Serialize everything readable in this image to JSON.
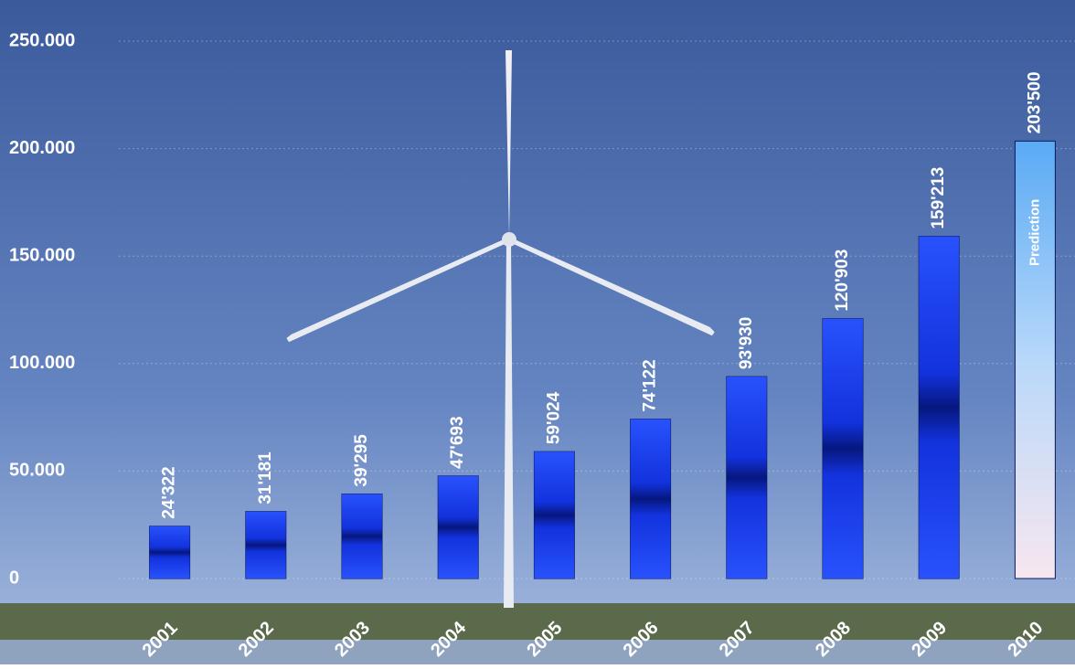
{
  "chart_data": {
    "type": "bar",
    "categories": [
      "2001",
      "2002",
      "2003",
      "2004",
      "2005",
      "2006",
      "2007",
      "2008",
      "2009",
      "2010"
    ],
    "values": [
      24322,
      31181,
      39295,
      47693,
      59024,
      74122,
      93930,
      120903,
      159213,
      203500
    ],
    "value_labels": [
      "24'322",
      "31'181",
      "39'295",
      "47'693",
      "59'024",
      "74'122",
      "93'930",
      "120'903",
      "159'213",
      "203'500"
    ],
    "colors": [
      "#1d3ff5",
      "#1d3ff5",
      "#1d3ff5",
      "#1d3ff5",
      "#1d3ff5",
      "#1d3ff5",
      "#1d3ff5",
      "#1d3ff5",
      "#1d3ff5",
      "#6fb8ff"
    ],
    "annotation": "Prediction",
    "ylim": [
      0,
      250000
    ],
    "yticks": [
      0,
      {
        "value": 50000,
        "label": "50.000"
      },
      {
        "value": 100000,
        "label": "100.000"
      },
      {
        "value": 150000,
        "label": "150.000"
      },
      {
        "value": 200000,
        "label": "200.000"
      },
      {
        "value": 250000,
        "label": "250.000"
      }
    ],
    "grid": true
  }
}
